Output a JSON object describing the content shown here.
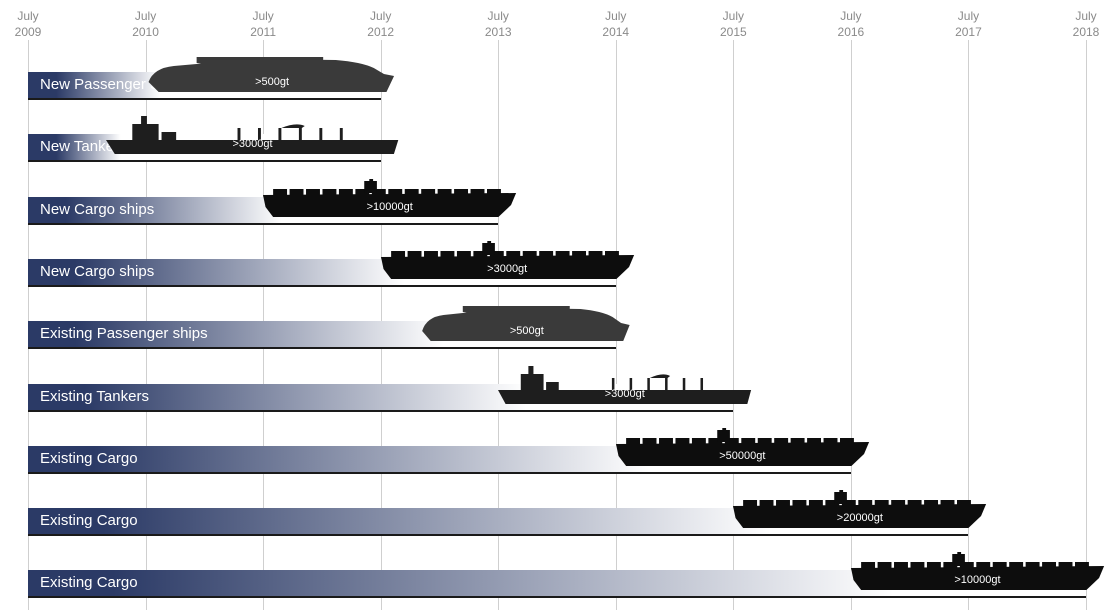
{
  "axis": {
    "ticks": [
      {
        "month": "July",
        "year": "2009"
      },
      {
        "month": "July",
        "year": "2010"
      },
      {
        "month": "July",
        "year": "2011"
      },
      {
        "month": "July",
        "year": "2012"
      },
      {
        "month": "July",
        "year": "2013"
      },
      {
        "month": "July",
        "year": "2014"
      },
      {
        "month": "July",
        "year": "2015"
      },
      {
        "month": "July",
        "year": "2016"
      },
      {
        "month": "July",
        "year": "2017"
      },
      {
        "month": "July",
        "year": "2018"
      }
    ]
  },
  "rows": [
    {
      "label": "New Passenger Ships",
      "ship": "passenger",
      "tonnage": ">500gt",
      "end": "2012-07",
      "ship_start": "2010-07"
    },
    {
      "label": "New Tankers",
      "ship": "tanker",
      "tonnage": ">3000gt",
      "end": "2012-07",
      "ship_start": "2010-03"
    },
    {
      "label": "New Cargo ships",
      "ship": "cargo",
      "tonnage": ">10000gt",
      "end": "2013-07",
      "ship_start": "2011-07"
    },
    {
      "label": "New Cargo ships",
      "ship": "cargo",
      "tonnage": ">3000gt",
      "end": "2014-07",
      "ship_start": "2012-07"
    },
    {
      "label": "Existing Passenger ships",
      "ship": "passenger",
      "tonnage": ">500gt",
      "end": "2014-07",
      "ship_start": "2012-11"
    },
    {
      "label": "Existing Tankers",
      "ship": "tanker",
      "tonnage": ">3000gt",
      "end": "2015-07",
      "ship_start": "2013-07"
    },
    {
      "label": "Existing Cargo",
      "ship": "cargo",
      "tonnage": ">50000gt",
      "end": "2016-07",
      "ship_start": "2014-07"
    },
    {
      "label": "Existing Cargo",
      "ship": "cargo",
      "tonnage": ">20000gt",
      "end": "2017-07",
      "ship_start": "2015-07"
    },
    {
      "label": "Existing Cargo",
      "ship": "cargo",
      "tonnage": ">10000gt",
      "end": "2018-07",
      "ship_start": "2016-07"
    }
  ],
  "colors": {
    "bar_dark": "#2b3a66",
    "bar_light": "#ffffff",
    "ship_passenger": "#3a3a3a",
    "ship_tanker": "#1e1e1e",
    "ship_cargo": "#0d0d0d",
    "gridline": "#cfcfcf"
  }
}
